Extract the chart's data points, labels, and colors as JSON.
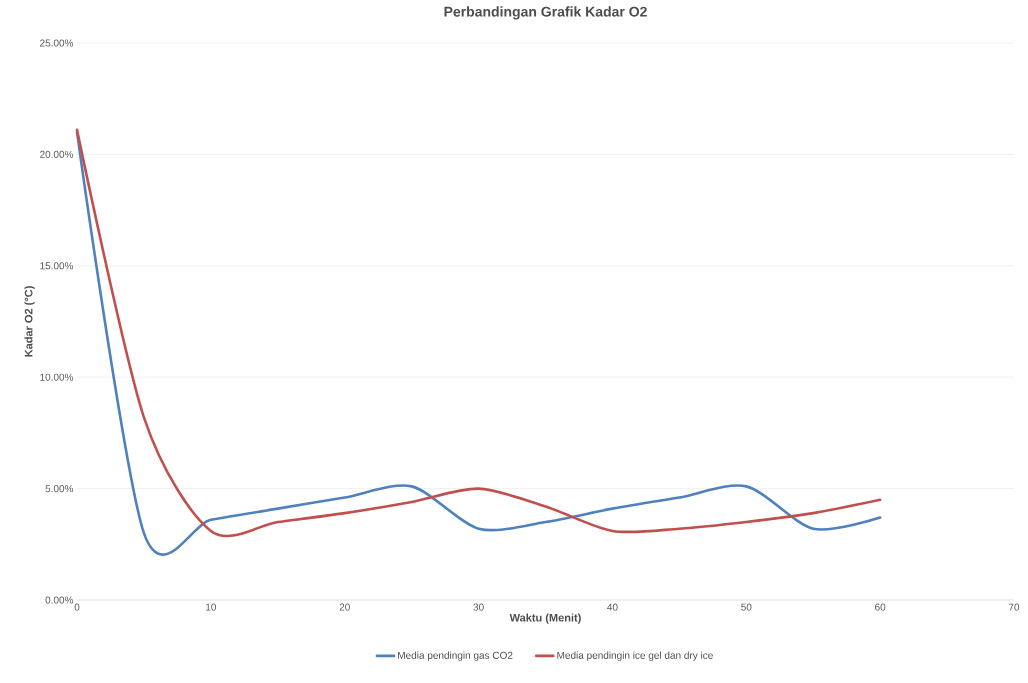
{
  "chart_data": {
    "type": "line",
    "title": "Perbandingan Grafik Kadar O2",
    "xlabel": "Waktu (Menit)",
    "ylabel": "Kadar O2 (°C)",
    "x": [
      0,
      5,
      10,
      15,
      20,
      25,
      30,
      35,
      40,
      45,
      50,
      55,
      60
    ],
    "series": [
      {
        "name": "Media pendingin gas CO2",
        "color": "#4f81bd",
        "values": [
          21.0,
          3.0,
          3.6,
          4.1,
          4.6,
          5.1,
          3.2,
          3.5,
          4.1,
          4.6,
          5.1,
          3.2,
          3.7
        ]
      },
      {
        "name": "Media pendingin ice gel dan dry ice",
        "color": "#c0504d",
        "values": [
          21.1,
          8.2,
          3.1,
          3.5,
          3.9,
          4.4,
          5.0,
          4.2,
          3.1,
          3.2,
          3.5,
          3.9,
          4.5
        ]
      }
    ],
    "xlim": [
      0,
      70
    ],
    "xticks": [
      0,
      10,
      20,
      30,
      40,
      50,
      60,
      70
    ],
    "ylim": [
      0,
      25
    ],
    "yticks": [
      {
        "value": 0,
        "label": "0.00%"
      },
      {
        "value": 5,
        "label": "5.00%"
      },
      {
        "value": 10,
        "label": "10.00%"
      },
      {
        "value": 15,
        "label": "15.00%"
      },
      {
        "value": 20,
        "label": "20.00%"
      },
      {
        "value": 25,
        "label": "25.00%"
      }
    ],
    "grid": "y",
    "legend": "bottom",
    "marker": "none",
    "line_style": "solid"
  }
}
